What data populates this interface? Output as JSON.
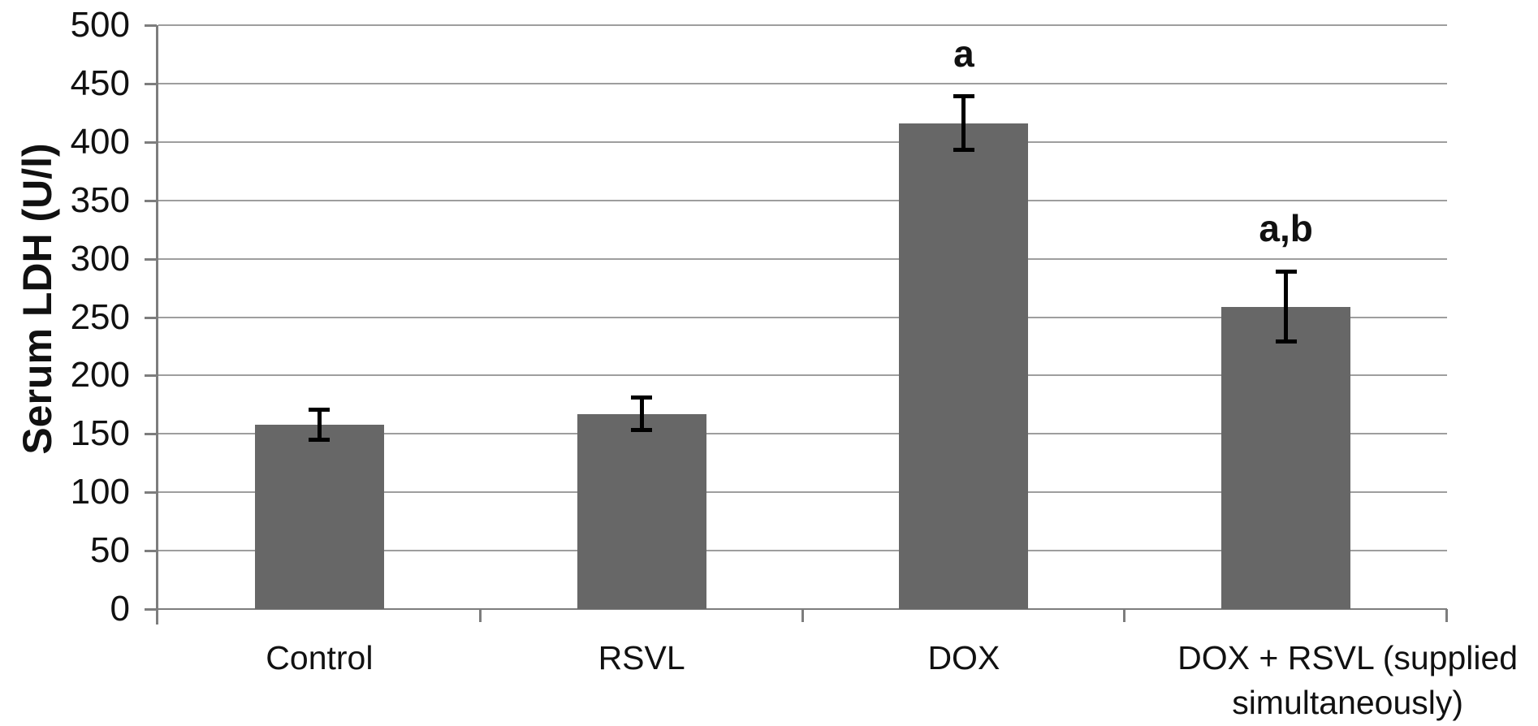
{
  "chart_data": {
    "type": "bar",
    "title": "",
    "xlabel": "",
    "ylabel": "Serum LDH (U/l)",
    "ylim": [
      0,
      500
    ],
    "ytick_interval": 50,
    "ytick_labels": [
      "0",
      "50",
      "100",
      "150",
      "200",
      "250",
      "300",
      "350",
      "400",
      "450",
      "500"
    ],
    "grid": true,
    "legend": false,
    "categories": [
      "Control",
      "RSVL",
      "DOX",
      "DOX + RSVL (supplied simultaneously)"
    ],
    "values": [
      158,
      167,
      416,
      259
    ],
    "errors": [
      13,
      14,
      23,
      30
    ],
    "annotations": [
      "",
      "",
      "a",
      "a,b"
    ],
    "colors": {
      "bar": "#676767",
      "gridline": "#9e9e9e",
      "axis": "#7d7d7d",
      "error_bar": "#000000",
      "text": "#111111"
    }
  }
}
